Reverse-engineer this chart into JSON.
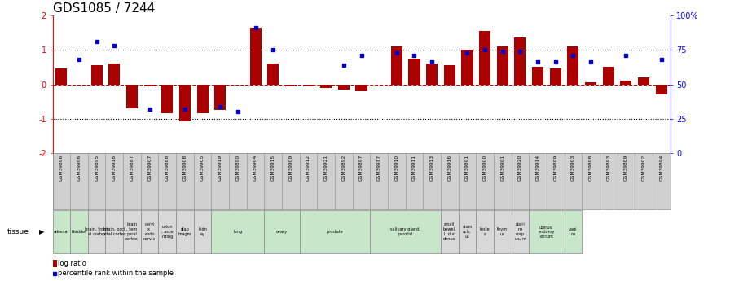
{
  "title": "GDS1085 / 7244",
  "samples": [
    "GSM39896",
    "GSM39906",
    "GSM39895",
    "GSM39918",
    "GSM39887",
    "GSM39907",
    "GSM39888",
    "GSM39908",
    "GSM39905",
    "GSM39919",
    "GSM39890",
    "GSM39904",
    "GSM39915",
    "GSM39909",
    "GSM39912",
    "GSM39921",
    "GSM39892",
    "GSM39897",
    "GSM39917",
    "GSM39910",
    "GSM39911",
    "GSM39913",
    "GSM39916",
    "GSM39891",
    "GSM39900",
    "GSM39901",
    "GSM39920",
    "GSM39914",
    "GSM39899",
    "GSM39903",
    "GSM39898",
    "GSM39893",
    "GSM39889",
    "GSM39902",
    "GSM39894"
  ],
  "log_ratio": [
    0.45,
    0.0,
    0.55,
    0.6,
    -0.7,
    -0.05,
    -0.85,
    -1.08,
    -0.85,
    -0.75,
    0.0,
    1.65,
    0.6,
    -0.05,
    -0.05,
    -0.1,
    -0.15,
    -0.2,
    0.0,
    1.1,
    0.75,
    0.6,
    0.55,
    1.0,
    1.55,
    1.1,
    1.35,
    0.5,
    0.45,
    1.1,
    0.05,
    0.5,
    0.1,
    0.2,
    -0.3
  ],
  "percentile_rank_pct": [
    null,
    68,
    81,
    78,
    null,
    32,
    null,
    32,
    null,
    34,
    30,
    91,
    75,
    null,
    null,
    null,
    64,
    71,
    null,
    73,
    71,
    66,
    null,
    73,
    75,
    74,
    74,
    66,
    66,
    71,
    66,
    null,
    71,
    null,
    68
  ],
  "bar_color": "#aa0000",
  "dot_color": "#0000cc",
  "ylim": [
    -2.0,
    2.0
  ],
  "yticks": [
    -2,
    -1,
    0,
    1,
    2
  ],
  "right_ticks_pct": [
    0,
    25,
    50,
    75,
    100
  ],
  "right_ticklabels": [
    "0",
    "25",
    "50",
    "75",
    "100%"
  ],
  "bg_color": "#ffffff",
  "title_fontsize": 11,
  "tissues": [
    {
      "label": "adrenal",
      "start": 0,
      "end": 1,
      "green": true
    },
    {
      "label": "bladder",
      "start": 1,
      "end": 2,
      "green": true
    },
    {
      "label": "brain, front\nal cortex",
      "start": 2,
      "end": 3,
      "green": false
    },
    {
      "label": "brain, occi\npital cortex",
      "start": 3,
      "end": 4,
      "green": false
    },
    {
      "label": "brain\n, tem\nporal\ncortex",
      "start": 4,
      "end": 5,
      "green": false
    },
    {
      "label": "cervi\nx,\nendo\ncervic",
      "start": 5,
      "end": 6,
      "green": false
    },
    {
      "label": "colon\n, asce\nnding",
      "start": 6,
      "end": 7,
      "green": false
    },
    {
      "label": "diap\nhragm",
      "start": 7,
      "end": 8,
      "green": false
    },
    {
      "label": "kidn\ney",
      "start": 8,
      "end": 9,
      "green": false
    },
    {
      "label": "lung",
      "start": 9,
      "end": 12,
      "green": true
    },
    {
      "label": "ovary",
      "start": 12,
      "end": 14,
      "green": true
    },
    {
      "label": "prostate",
      "start": 14,
      "end": 18,
      "green": true
    },
    {
      "label": "salivary gland,\nparotid",
      "start": 18,
      "end": 22,
      "green": true
    },
    {
      "label": "small\nbowel,\nl, duc\ndenus",
      "start": 22,
      "end": 23,
      "green": false
    },
    {
      "label": "stom\nach,\nus",
      "start": 23,
      "end": 24,
      "green": false
    },
    {
      "label": "teste\ns",
      "start": 24,
      "end": 25,
      "green": false
    },
    {
      "label": "thym\nus",
      "start": 25,
      "end": 26,
      "green": false
    },
    {
      "label": "uteri\nne\ncorp\nus, m",
      "start": 26,
      "end": 27,
      "green": false
    },
    {
      "label": "uterus,\nendomy\netrium",
      "start": 27,
      "end": 29,
      "green": true
    },
    {
      "label": "vagi\nna",
      "start": 29,
      "end": 30,
      "green": true
    }
  ],
  "green_color": "#c8e6c9",
  "gray_color": "#d8d8d8",
  "cell_border": "#888888",
  "names_bg": "#d0d0d0"
}
